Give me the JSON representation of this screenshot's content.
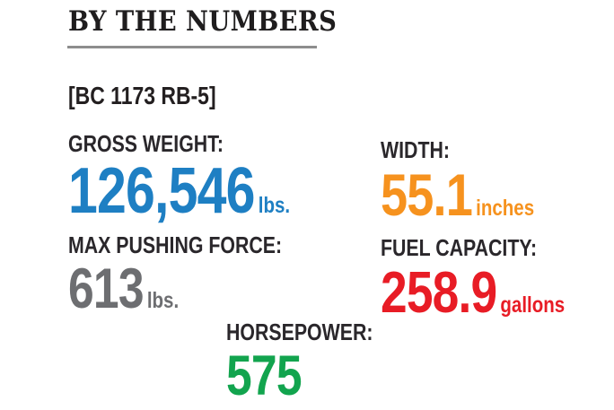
{
  "header": {
    "title": "BY THE NUMBERS"
  },
  "model": {
    "label": "[BC 1173 RB-5]"
  },
  "stats": [
    {
      "id": "gross-weight",
      "label": "GROSS WEIGHT:",
      "value": "126,546",
      "unit": "lbs.",
      "color": "#1e7fc3"
    },
    {
      "id": "width",
      "label": "WIDTH:",
      "value": "55.1",
      "unit": "inches",
      "color": "#f6921e"
    },
    {
      "id": "max-pushing-force",
      "label": "MAX PUSHING FORCE:",
      "value": "613",
      "unit": "lbs.",
      "color": "#6d6e71"
    },
    {
      "id": "fuel-capacity",
      "label": "FUEL CAPACITY:",
      "value": "258.9",
      "unit": "gallons",
      "color": "#e81c25"
    },
    {
      "id": "horsepower",
      "label": "HORSEPOWER:",
      "value": "575",
      "unit": "",
      "color": "#12a44e"
    }
  ],
  "colors": {
    "title_text": "#1f1d1e",
    "label_text": "#2a272b",
    "rule_gray": "#8d8d8d",
    "background": "#ffffff"
  },
  "chart_data": {
    "type": "table",
    "title": "BY THE NUMBERS",
    "subject": "[BC 1173 RB-5]",
    "categories": [
      "GROSS WEIGHT",
      "WIDTH",
      "MAX PUSHING FORCE",
      "FUEL CAPACITY",
      "HORSEPOWER"
    ],
    "values": [
      126546,
      55.1,
      613,
      258.9,
      575
    ],
    "units": [
      "lbs.",
      "inches",
      "lbs.",
      "gallons",
      ""
    ],
    "value_colors": [
      "#1e7fc3",
      "#f6921e",
      "#6d6e71",
      "#e81c25",
      "#12a44e"
    ],
    "layout": "two-column stat grid with centered final stat, title underlined top-left"
  }
}
